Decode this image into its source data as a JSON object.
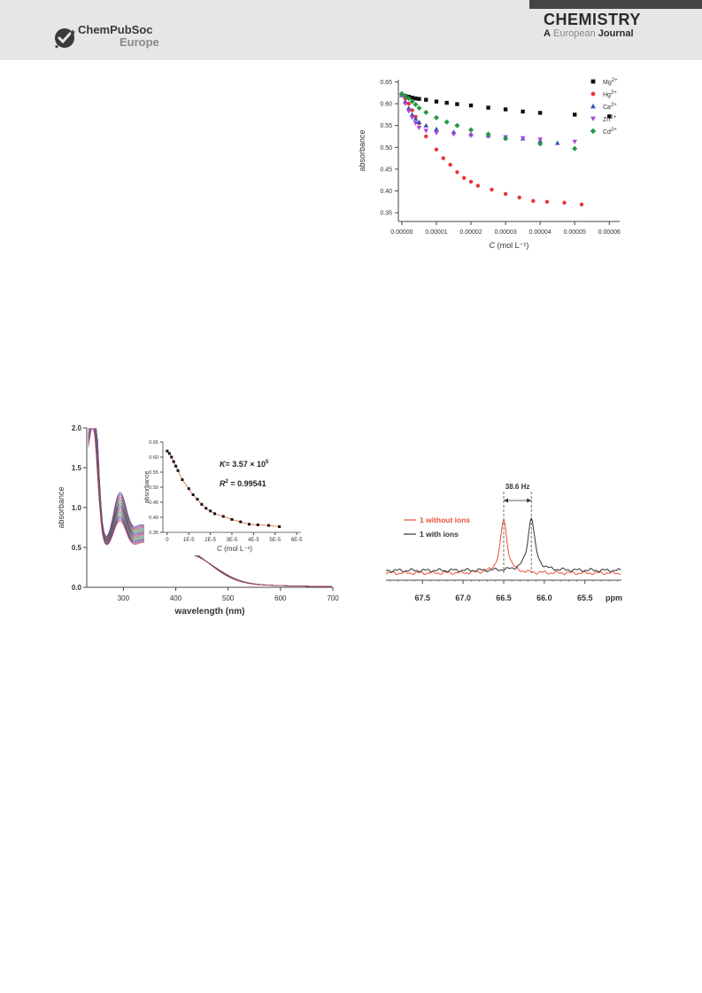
{
  "header": {
    "publisher_name": "ChemPubSoc",
    "publisher_region": "Europe",
    "journal_title": "CHEMISTRY",
    "journal_sub_a": "A",
    "journal_sub_european": "European",
    "journal_sub_journal": "Journal"
  },
  "chart_data": [
    {
      "type": "scatter",
      "xlabel_italic": "C",
      "xlabel_rest": " (mol L⁻¹)",
      "ylabel": "absorbance",
      "xlim": [
        -1e-06,
        6.3e-05
      ],
      "ylim": [
        0.33,
        0.655
      ],
      "xticks": [
        0,
        1e-05,
        2e-05,
        3e-05,
        4e-05,
        5e-05,
        6e-05
      ],
      "xtick_labels": [
        "0.00000",
        "0.00001",
        "0.00002",
        "0.00003",
        "0.00004",
        "0.00005",
        "0.00006"
      ],
      "yticks": [
        0.35,
        0.4,
        0.45,
        0.5,
        0.55,
        0.6,
        0.65
      ],
      "ytick_labels": [
        "0.35",
        "0.40",
        "0.45",
        "0.50",
        "0.55",
        "0.60",
        "0.65"
      ],
      "legend_position": "top-right",
      "series": [
        {
          "name": "Mg",
          "sup": "2+",
          "color": "#111111",
          "marker": "square",
          "x": [
            0,
            1e-06,
            2e-06,
            3e-06,
            4e-06,
            5e-06,
            7e-06,
            1e-05,
            1.3e-05,
            1.6e-05,
            2e-05,
            2.5e-05,
            3e-05,
            3.5e-05,
            4e-05,
            5e-05,
            6e-05
          ],
          "y": [
            0.62,
            0.618,
            0.616,
            0.614,
            0.612,
            0.611,
            0.609,
            0.605,
            0.602,
            0.599,
            0.596,
            0.591,
            0.587,
            0.582,
            0.579,
            0.575,
            0.571
          ]
        },
        {
          "name": "Hg",
          "sup": "2+",
          "color": "#ee3333",
          "marker": "circle",
          "x": [
            0,
            1e-06,
            2e-06,
            3e-06,
            4e-06,
            5e-06,
            7e-06,
            1e-05,
            1.2e-05,
            1.4e-05,
            1.6e-05,
            1.8e-05,
            2e-05,
            2.2e-05,
            2.6e-05,
            3e-05,
            3.4e-05,
            3.8e-05,
            4.2e-05,
            4.7e-05,
            5.2e-05
          ],
          "y": [
            0.62,
            0.612,
            0.6,
            0.585,
            0.57,
            0.555,
            0.525,
            0.495,
            0.475,
            0.46,
            0.443,
            0.43,
            0.421,
            0.412,
            0.403,
            0.393,
            0.385,
            0.377,
            0.375,
            0.373,
            0.369
          ]
        },
        {
          "name": "Ca",
          "sup": "2+",
          "color": "#3355bb",
          "marker": "triangle",
          "x": [
            0,
            1e-06,
            2e-06,
            3e-06,
            4e-06,
            5e-06,
            7e-06,
            1e-05,
            1.5e-05,
            2e-05,
            2.5e-05,
            3e-05,
            3.5e-05,
            4e-05,
            4.5e-05
          ],
          "y": [
            0.62,
            0.605,
            0.59,
            0.575,
            0.565,
            0.558,
            0.55,
            0.542,
            0.535,
            0.53,
            0.527,
            0.524,
            0.52,
            0.515,
            0.51
          ]
        },
        {
          "name": "Zn",
          "sup": "2+",
          "color": "#aa44dd",
          "marker": "triangle-down",
          "x": [
            0,
            1e-06,
            2e-06,
            3e-06,
            4e-06,
            5e-06,
            7e-06,
            1e-05,
            1.5e-05,
            2e-05,
            2.5e-05,
            3e-05,
            3.5e-05,
            4e-05,
            5e-05
          ],
          "y": [
            0.618,
            0.6,
            0.583,
            0.568,
            0.555,
            0.545,
            0.538,
            0.533,
            0.53,
            0.527,
            0.525,
            0.523,
            0.521,
            0.518,
            0.513
          ]
        },
        {
          "name": "Cd",
          "sup": "2+",
          "color": "#229944",
          "marker": "diamond",
          "x": [
            0,
            1e-06,
            2e-06,
            3e-06,
            4e-06,
            5e-06,
            7e-06,
            1e-05,
            1.3e-05,
            1.6e-05,
            2e-05,
            2.5e-05,
            3e-05,
            4e-05,
            5e-05
          ],
          "y": [
            0.623,
            0.618,
            0.612,
            0.605,
            0.598,
            0.59,
            0.58,
            0.568,
            0.558,
            0.55,
            0.54,
            0.53,
            0.52,
            0.508,
            0.497
          ]
        }
      ]
    },
    {
      "type": "line",
      "xlabel": "wavelength (nm)",
      "ylabel": "absorbance",
      "xlim": [
        230,
        700
      ],
      "ylim": [
        0,
        2.0
      ],
      "xticks": [
        300,
        400,
        500,
        600,
        700
      ],
      "xtick_labels": [
        "300",
        "400",
        "500",
        "600",
        "700"
      ],
      "yticks": [
        0,
        0.5,
        1.0,
        1.5,
        2.0
      ],
      "ytick_labels": [
        "0.0",
        "0.5",
        "1.0",
        "1.5",
        "2.0"
      ],
      "series_count": 20,
      "peak_nm": [
        243,
        293,
        330,
        400
      ],
      "series_note_colors": [
        "#3a3a9a",
        "#6a3aa0",
        "#a03a80",
        "#c03a3a",
        "#3a8a6a",
        "#2a7a9a",
        "#8a8a2a",
        "#5a5a5a"
      ],
      "inset": {
        "type": "scatter",
        "xlabel_italic": "C",
        "xlabel_rest": " (mol L⁻¹)",
        "ylabel": "absorbance",
        "xlim": [
          -2e-06,
          6.2e-05
        ],
        "ylim": [
          0.35,
          0.65
        ],
        "xticks": [
          0,
          1e-05,
          2e-05,
          3e-05,
          4e-05,
          5e-05,
          6e-05
        ],
        "xtick_labels": [
          "0",
          "1E-5",
          "2E-5",
          "3E-5",
          "4E-5",
          "5E-5",
          "6E-5"
        ],
        "yticks": [
          0.35,
          0.4,
          0.45,
          0.5,
          0.55,
          0.6,
          0.65
        ],
        "ytick_labels": [
          "0.35",
          "0.40",
          "0.45",
          "0.50",
          "0.55",
          "0.60",
          "0.65"
        ],
        "annotation_K_symbol": "K",
        "annotation_K_value": "= 3.57 × 10",
        "annotation_K_exp": "5",
        "annotation_R_symbol": "R",
        "annotation_R_exp": "2",
        "annotation_R_value": " = 0.99541",
        "x": [
          0,
          1e-06,
          2e-06,
          3e-06,
          4e-06,
          5e-06,
          7e-06,
          1e-05,
          1.2e-05,
          1.4e-05,
          1.6e-05,
          1.8e-05,
          2e-05,
          2.2e-05,
          2.6e-05,
          3e-05,
          3.4e-05,
          3.8e-05,
          4.2e-05,
          4.7e-05,
          5.2e-05
        ],
        "y": [
          0.62,
          0.612,
          0.6,
          0.585,
          0.57,
          0.555,
          0.525,
          0.495,
          0.475,
          0.46,
          0.443,
          0.43,
          0.421,
          0.412,
          0.403,
          0.393,
          0.385,
          0.377,
          0.375,
          0.373,
          0.369
        ]
      }
    },
    {
      "type": "line",
      "xlabel": "ppm",
      "xlim": [
        67.95,
        65.05
      ],
      "xticks": [
        67.5,
        67.0,
        66.5,
        66.0,
        65.5
      ],
      "xtick_labels": [
        "67.5",
        "67.0",
        "66.5",
        "66.0",
        "65.5"
      ],
      "annotation": "38.6 Hz",
      "marker_lines_ppm": [
        66.5,
        66.16
      ],
      "series": [
        {
          "name": "1 without ions",
          "color": "#e8503a",
          "peak_ppm": 66.5
        },
        {
          "name": "1 with ions",
          "color": "#333333",
          "peak_ppm": 66.16
        }
      ]
    }
  ]
}
